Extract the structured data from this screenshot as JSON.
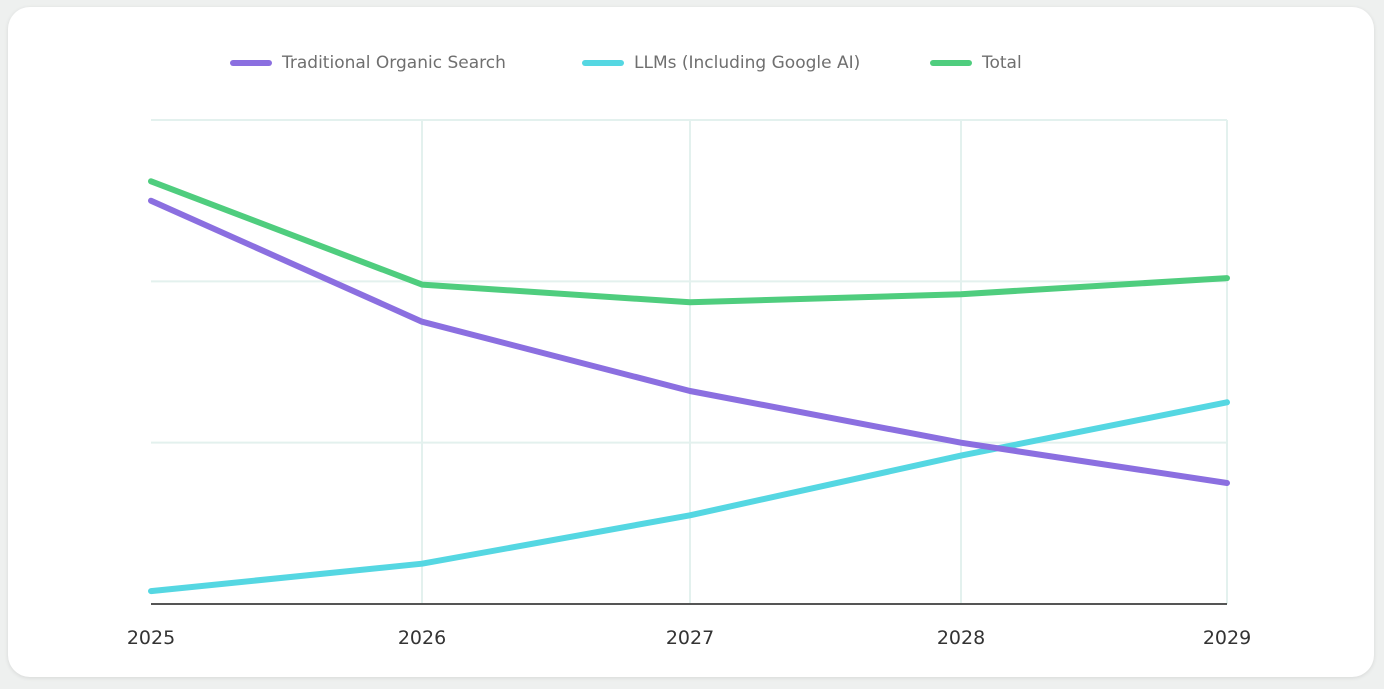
{
  "chart_data": {
    "type": "line",
    "title": "",
    "xlabel": "",
    "ylabel": "",
    "x": [
      "2025",
      "2026",
      "2027",
      "2028",
      "2029"
    ],
    "ylim": [
      0,
      3
    ],
    "grid": true,
    "legend": "top",
    "series": [
      {
        "name": "Traditional Organic Search",
        "color": "#8b6fe0",
        "values": [
          2.5,
          1.75,
          1.32,
          1.0,
          0.75
        ]
      },
      {
        "name": "LLMs (Including Google AI)",
        "color": "#55d7e2",
        "values": [
          0.08,
          0.25,
          0.55,
          0.92,
          1.25
        ]
      },
      {
        "name": "Total",
        "color": "#4fcd7e",
        "values": [
          2.62,
          1.98,
          1.87,
          1.92,
          2.02
        ]
      }
    ]
  }
}
